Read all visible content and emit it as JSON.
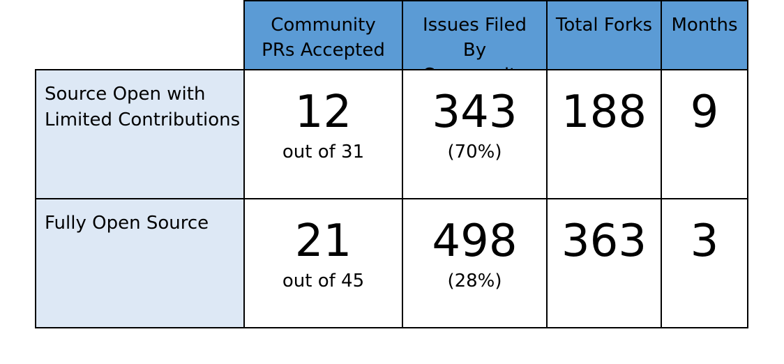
{
  "chart_data": {
    "type": "table",
    "columns": [
      "Community PRs Accepted",
      "Issues Filed By Community",
      "Total Forks",
      "Months"
    ],
    "rows": [
      {
        "label": "Source Open with Limited Contributions",
        "values": [
          {
            "main": "12",
            "sub": "out of 31"
          },
          {
            "main": "343",
            "sub": "(70%)"
          },
          {
            "main": "188",
            "sub": ""
          },
          {
            "main": "9",
            "sub": ""
          }
        ]
      },
      {
        "label": "Fully Open Source",
        "values": [
          {
            "main": "21",
            "sub": "out of 45"
          },
          {
            "main": "498",
            "sub": "(28%)"
          },
          {
            "main": "363",
            "sub": ""
          },
          {
            "main": "3",
            "sub": ""
          }
        ]
      }
    ],
    "colors": {
      "header_fill": "#5b9bd5",
      "row_label_fill": "#dde8f5",
      "data_fill": "#ffffff",
      "border": "#000000"
    }
  }
}
